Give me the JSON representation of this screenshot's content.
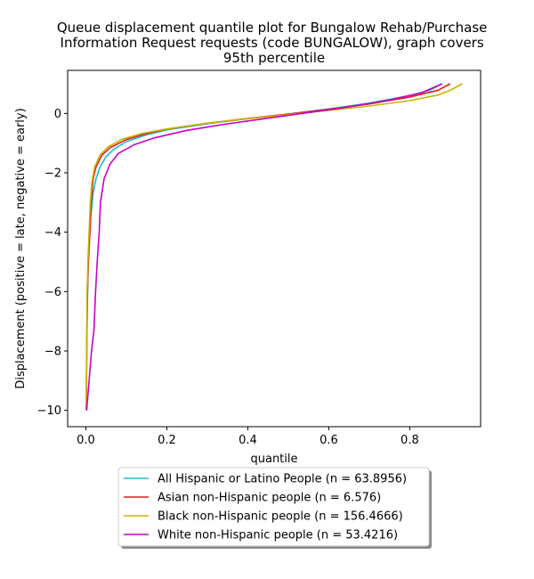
{
  "chart_data": {
    "type": "line",
    "title": "Queue displacement quantile plot for Bungalow Rehab/Purchase\nInformation Request  requests (code BUNGALOW), graph covers\n95th percentile",
    "xlabel": "quantile",
    "ylabel": "Displacement (positive = late, negative = early)",
    "xlim": [
      -0.045,
      0.975
    ],
    "ylim": [
      -10.55,
      1.45
    ],
    "x_ticks": [
      0.0,
      0.2,
      0.4,
      0.6,
      0.8
    ],
    "x_tick_labels": [
      "0.0",
      "0.2",
      "0.4",
      "0.6",
      "0.8"
    ],
    "y_ticks": [
      0,
      -2,
      -4,
      -6,
      -8,
      -10
    ],
    "y_tick_labels": [
      "0",
      "−2",
      "−4",
      "−6",
      "−8",
      "−10"
    ],
    "grid": false,
    "legend_position": "below",
    "series": [
      {
        "name": "All Hispanic or Latino People (n = 63.8956)",
        "color": "#17becf",
        "points": [
          [
            0.001,
            -10
          ],
          [
            0.003,
            -7
          ],
          [
            0.005,
            -5.5
          ],
          [
            0.008,
            -4.5
          ],
          [
            0.012,
            -3.5
          ],
          [
            0.018,
            -2.7
          ],
          [
            0.025,
            -2.2
          ],
          [
            0.035,
            -1.8
          ],
          [
            0.05,
            -1.45
          ],
          [
            0.07,
            -1.2
          ],
          [
            0.1,
            -0.95
          ],
          [
            0.15,
            -0.72
          ],
          [
            0.2,
            -0.55
          ],
          [
            0.3,
            -0.35
          ],
          [
            0.4,
            -0.18
          ],
          [
            0.5,
            -0.02
          ],
          [
            0.6,
            0.15
          ],
          [
            0.7,
            0.35
          ],
          [
            0.8,
            0.6
          ],
          [
            0.85,
            0.78
          ],
          [
            0.88,
            1.0
          ]
        ]
      },
      {
        "name": "Asian non-Hispanic people (n = 6.576)",
        "color": "#e41a1c",
        "points": [
          [
            0.001,
            -10
          ],
          [
            0.002,
            -8
          ],
          [
            0.004,
            -6
          ],
          [
            0.006,
            -5
          ],
          [
            0.01,
            -4
          ],
          [
            0.013,
            -3
          ],
          [
            0.018,
            -2.2
          ],
          [
            0.025,
            -1.8
          ],
          [
            0.04,
            -1.4
          ],
          [
            0.06,
            -1.15
          ],
          [
            0.1,
            -0.88
          ],
          [
            0.15,
            -0.68
          ],
          [
            0.2,
            -0.53
          ],
          [
            0.3,
            -0.33
          ],
          [
            0.4,
            -0.17
          ],
          [
            0.5,
            -0.02
          ],
          [
            0.6,
            0.14
          ],
          [
            0.7,
            0.32
          ],
          [
            0.8,
            0.55
          ],
          [
            0.87,
            0.78
          ],
          [
            0.9,
            1.0
          ]
        ]
      },
      {
        "name": "Black non-Hispanic people (n = 156.4666)",
        "color": "#c8b400",
        "points": [
          [
            0.001,
            -10
          ],
          [
            0.002,
            -8
          ],
          [
            0.003,
            -6
          ],
          [
            0.005,
            -5
          ],
          [
            0.008,
            -4
          ],
          [
            0.011,
            -3
          ],
          [
            0.015,
            -2.3
          ],
          [
            0.022,
            -1.8
          ],
          [
            0.035,
            -1.4
          ],
          [
            0.055,
            -1.12
          ],
          [
            0.09,
            -0.87
          ],
          [
            0.14,
            -0.67
          ],
          [
            0.2,
            -0.52
          ],
          [
            0.3,
            -0.33
          ],
          [
            0.4,
            -0.18
          ],
          [
            0.5,
            -0.04
          ],
          [
            0.6,
            0.1
          ],
          [
            0.7,
            0.25
          ],
          [
            0.8,
            0.43
          ],
          [
            0.87,
            0.62
          ],
          [
            0.9,
            0.78
          ],
          [
            0.93,
            1.0
          ]
        ]
      },
      {
        "name": "White non-Hispanic people (n = 53.4216)",
        "color": "#c800c8",
        "points": [
          [
            0.002,
            -10
          ],
          [
            0.008,
            -9
          ],
          [
            0.014,
            -8
          ],
          [
            0.02,
            -7.3
          ],
          [
            0.024,
            -6
          ],
          [
            0.028,
            -5
          ],
          [
            0.033,
            -4
          ],
          [
            0.036,
            -3
          ],
          [
            0.045,
            -2.2
          ],
          [
            0.06,
            -1.7
          ],
          [
            0.08,
            -1.35
          ],
          [
            0.12,
            -1.05
          ],
          [
            0.17,
            -0.82
          ],
          [
            0.25,
            -0.57
          ],
          [
            0.35,
            -0.35
          ],
          [
            0.45,
            -0.16
          ],
          [
            0.55,
            0.03
          ],
          [
            0.65,
            0.22
          ],
          [
            0.75,
            0.45
          ],
          [
            0.83,
            0.7
          ],
          [
            0.88,
            1.0
          ]
        ]
      }
    ]
  }
}
